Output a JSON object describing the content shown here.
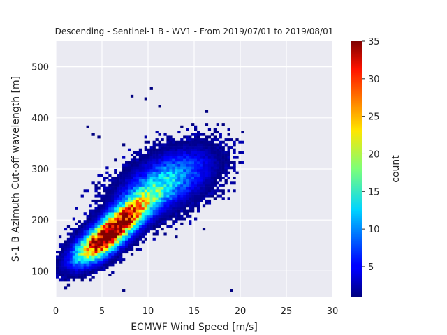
{
  "chart_data": {
    "type": "heatmap",
    "title": "Descending - Sentinel-1 B - WV1 - From 2019/07/01 to 2019/08/01",
    "xlabel": "ECMWF Wind Speed [m/s]",
    "ylabel": "S-1 B Azimuth Cut-off wavelength [m]",
    "colorbar_label": "count",
    "xlim": [
      0,
      30
    ],
    "ylim": [
      50,
      550
    ],
    "x_ticks": [
      0,
      5,
      10,
      15,
      20,
      25,
      30
    ],
    "y_ticks": [
      100,
      200,
      300,
      400,
      500
    ],
    "colorbar_range": [
      1,
      35
    ],
    "colorbar_ticks": [
      5,
      10,
      15,
      20,
      25,
      30,
      35
    ],
    "colormap": "jet",
    "grid": true,
    "background": "#eaeaf2",
    "density_model": {
      "clusters": [
        {
          "x": 7.0,
          "y": 195,
          "sx": 2.3,
          "sy": 36,
          "rho": 0.8,
          "peak": 32
        },
        {
          "x": 4.5,
          "y": 150,
          "sx": 1.8,
          "sy": 25,
          "rho": 0.6,
          "peak": 20
        },
        {
          "x": 11.0,
          "y": 265,
          "sx": 2.8,
          "sy": 38,
          "rho": 0.5,
          "peak": 10
        },
        {
          "x": 14.0,
          "y": 295,
          "sx": 2.5,
          "sy": 32,
          "rho": 0.3,
          "peak": 4
        }
      ],
      "sparse_x_range": [
        0,
        22
      ],
      "sparse_y_range": [
        55,
        460
      ]
    }
  }
}
